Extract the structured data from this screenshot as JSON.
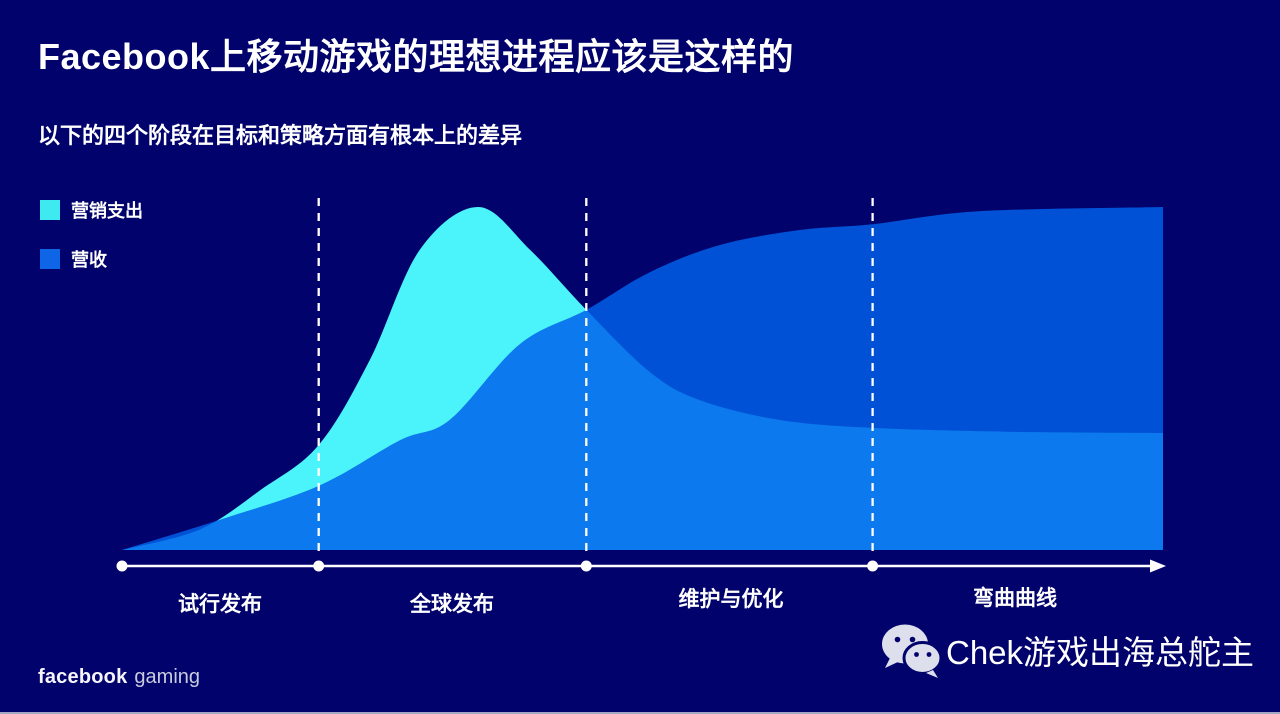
{
  "slide": {
    "title": "Facebook上移动游戏的理想进程应该是这样的",
    "subtitle": "以下的四个阶段在目标和策略方面有根本上的差异"
  },
  "colors": {
    "background": "#01026B",
    "marketing_area": "#4BF4FA",
    "marketing_legend": "#3EE9F0",
    "revenue_area": "rgba(0,97,235,0.84)",
    "revenue_legend": "#0E66E6",
    "axis": "#FFFFFF",
    "divider": "#FFFFFF"
  },
  "legend": [
    {
      "id": "marketing",
      "label": "营销支出"
    },
    {
      "id": "revenue",
      "label": "营收"
    }
  ],
  "chart_data": {
    "type": "area",
    "title": "",
    "xlabel": "",
    "ylabel": "",
    "ylim": [
      0,
      1
    ],
    "grid": false,
    "legend_position": "top-left",
    "x_phases": [
      "试行发布",
      "全球发布",
      "维护与优化",
      "弯曲曲线"
    ],
    "phase_dividers_x": [
      0.189,
      0.446,
      0.721
    ],
    "series": [
      {
        "name": "营销支出",
        "color": "#4BF4FA",
        "points": [
          [
            0,
            0
          ],
          [
            0.075,
            0.06
          ],
          [
            0.133,
            0.175
          ],
          [
            0.189,
            0.306
          ],
          [
            0.238,
            0.554
          ],
          [
            0.286,
            0.875
          ],
          [
            0.342,
            1.0
          ],
          [
            0.392,
            0.875
          ],
          [
            0.446,
            0.7
          ],
          [
            0.507,
            0.519
          ],
          [
            0.555,
            0.437
          ],
          [
            0.632,
            0.379
          ],
          [
            0.721,
            0.356
          ],
          [
            0.85,
            0.345
          ],
          [
            1,
            0.341
          ]
        ]
      },
      {
        "name": "营收",
        "color": "rgba(0,97,235,0.84)",
        "points": [
          [
            0,
            0
          ],
          [
            0.094,
            0.088
          ],
          [
            0.189,
            0.187
          ],
          [
            0.267,
            0.32
          ],
          [
            0.315,
            0.38
          ],
          [
            0.382,
            0.6
          ],
          [
            0.446,
            0.7
          ],
          [
            0.507,
            0.81
          ],
          [
            0.574,
            0.889
          ],
          [
            0.651,
            0.933
          ],
          [
            0.721,
            0.95
          ],
          [
            0.824,
            0.988
          ],
          [
            1,
            1.0
          ]
        ]
      }
    ]
  },
  "footer": {
    "brand_bold": "facebook",
    "brand_light": "gaming",
    "wechat_name": "Chek游戏出海总舵主"
  }
}
